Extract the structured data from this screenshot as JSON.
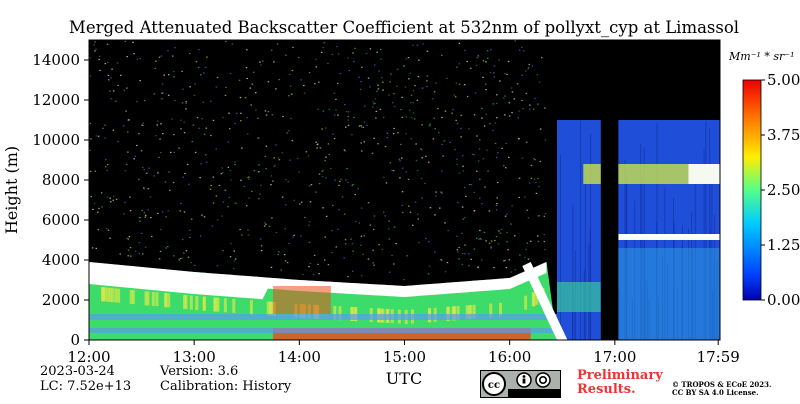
{
  "chart_data": {
    "type": "heatmap",
    "title": "Merged Attenuated Backscatter Coefficient at 532nm of pollyxt_cyp at Limassol",
    "xlabel": "UTC",
    "ylabel": "Height (m)",
    "x_range": [
      "12:00",
      "17:59"
    ],
    "ylim": [
      0,
      15000
    ],
    "x_ticks": [
      "12:00",
      "13:00",
      "14:00",
      "15:00",
      "16:00",
      "17:00",
      "17:59"
    ],
    "x_tick_hours": [
      12.0,
      13.0,
      14.0,
      15.0,
      16.0,
      17.0,
      17.983
    ],
    "y_ticks": [
      0,
      2000,
      4000,
      6000,
      8000,
      10000,
      12000,
      14000
    ],
    "y_tick_labels": [
      "0",
      "2000",
      "4000",
      "6000",
      "8000",
      "10000",
      "12000",
      "14000"
    ],
    "colorbar": {
      "unit": "Mm⁻¹ * sr⁻¹",
      "range": [
        0,
        5
      ],
      "ticks": [
        0,
        1.25,
        2.5,
        3.75,
        5
      ],
      "tick_labels": [
        "0.00",
        "1.25",
        "2.50",
        "3.75",
        "5.00"
      ],
      "colormap": "jet"
    },
    "colors": {
      "no_data": "#000000",
      "clean_air": "#1f4ed8",
      "aerosol": "#3ddc6a",
      "cloud": "#ffffff",
      "strong": "#e8501c"
    },
    "features": {
      "boundary_layer_top_m": [
        [
          12.0,
          3900
        ],
        [
          13.0,
          3400
        ],
        [
          14.0,
          3000
        ],
        [
          15.0,
          2700
        ],
        [
          16.0,
          3100
        ],
        [
          16.35,
          3900
        ]
      ],
      "dust_layer_top_m": [
        [
          12.0,
          3700
        ],
        [
          13.0,
          3200
        ],
        [
          14.0,
          2800
        ],
        [
          15.0,
          2500
        ],
        [
          16.0,
          2900
        ],
        [
          16.3,
          3500
        ]
      ],
      "no_data_gap_utc": [
        "16:52",
        "17:02"
      ],
      "high_cloud_layer_m": [
        7800,
        8800
      ],
      "mid_cloud_layer_m": [
        5000,
        5300
      ]
    }
  },
  "footer": {
    "date": "2023-03-24",
    "lc": "LC: 7.52e+13",
    "version": "Version: 3.6",
    "calibration": "Calibration: History",
    "utc_label": "UTC",
    "preliminary_line1": "Preliminary",
    "preliminary_line2": "Results.",
    "copyright_line1": "© TROPOS & ECoE 2023.",
    "copyright_line2": "CC BY SA 4.0 License.",
    "license_badge": "cc-by-sa-badge"
  }
}
